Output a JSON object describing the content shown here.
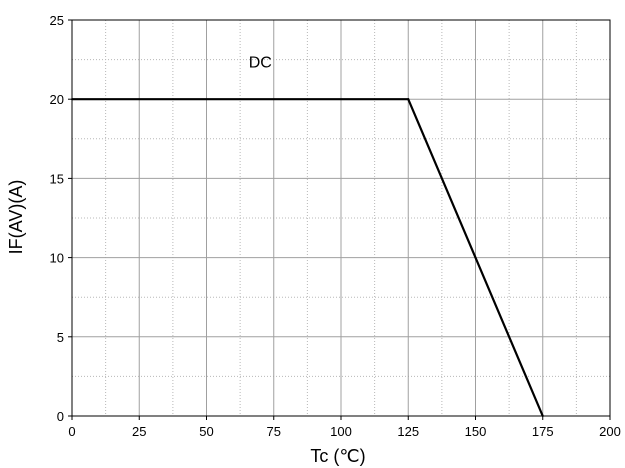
{
  "chart_data": {
    "type": "line",
    "xlabel": "Tc (℃)",
    "ylabel": "IF(AV)(A)",
    "xlim": [
      0,
      200
    ],
    "ylim": [
      0,
      25
    ],
    "x_ticks": [
      0,
      25,
      50,
      75,
      100,
      125,
      150,
      175,
      200
    ],
    "y_ticks": [
      0,
      5,
      10,
      15,
      20,
      25
    ],
    "x_minor_step": 12.5,
    "y_minor_step": 2.5,
    "grid": true,
    "series": [
      {
        "name": "DC",
        "x": [
          0,
          125,
          175
        ],
        "y": [
          20,
          20,
          0
        ],
        "color": "#000000"
      }
    ],
    "annotations": [
      {
        "text": "DC",
        "x": 70,
        "y": 22
      }
    ]
  }
}
